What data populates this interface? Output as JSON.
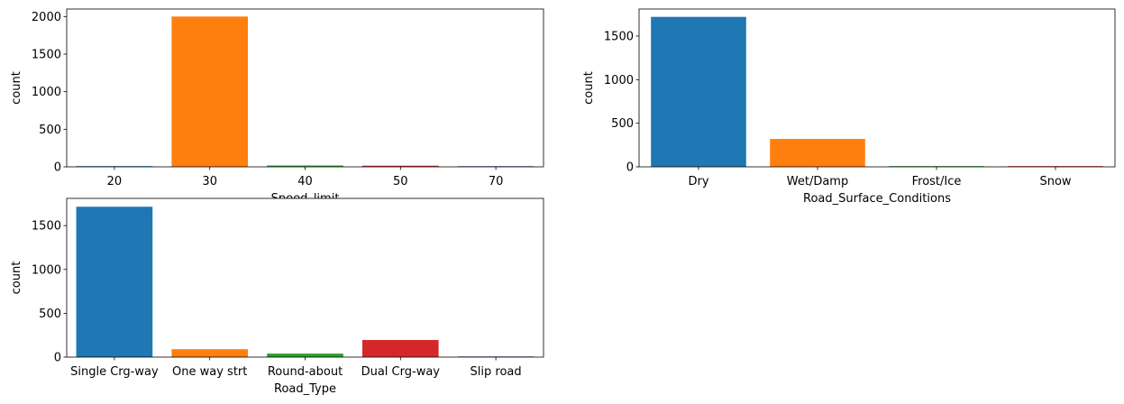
{
  "chart_data": [
    {
      "type": "bar",
      "categories": [
        "20",
        "30",
        "40",
        "50",
        "70"
      ],
      "values": [
        5,
        2000,
        18,
        15,
        4
      ],
      "colors": [
        "#1f77b4",
        "#ff7f0e",
        "#2ca02c",
        "#d62728",
        "#9467bd"
      ],
      "xlabel": "Speed_limit",
      "ylabel": "count",
      "ylim": [
        0,
        2100
      ],
      "yticks": [
        0,
        500,
        1000,
        1500,
        2000
      ]
    },
    {
      "type": "bar",
      "categories": [
        "Dry",
        "Wet/Damp",
        "Frost/Ice",
        "Snow"
      ],
      "values": [
        1720,
        320,
        6,
        4
      ],
      "colors": [
        "#1f77b4",
        "#ff7f0e",
        "#2ca02c",
        "#d62728"
      ],
      "xlabel": "Road_Surface_Conditions",
      "ylabel": "count",
      "ylim": [
        0,
        1810
      ],
      "yticks": [
        0,
        500,
        1000,
        1500
      ]
    },
    {
      "type": "bar",
      "categories": [
        "Single Crg-way",
        "One way strt",
        "Round-about",
        "Dual Crg-way",
        "Slip road"
      ],
      "values": [
        1715,
        90,
        40,
        195,
        6
      ],
      "colors": [
        "#1f77b4",
        "#ff7f0e",
        "#2ca02c",
        "#d62728",
        "#9467bd"
      ],
      "xlabel": "Road_Type",
      "ylabel": "count",
      "ylim": [
        0,
        1810
      ],
      "yticks": [
        0,
        500,
        1000,
        1500
      ]
    }
  ]
}
